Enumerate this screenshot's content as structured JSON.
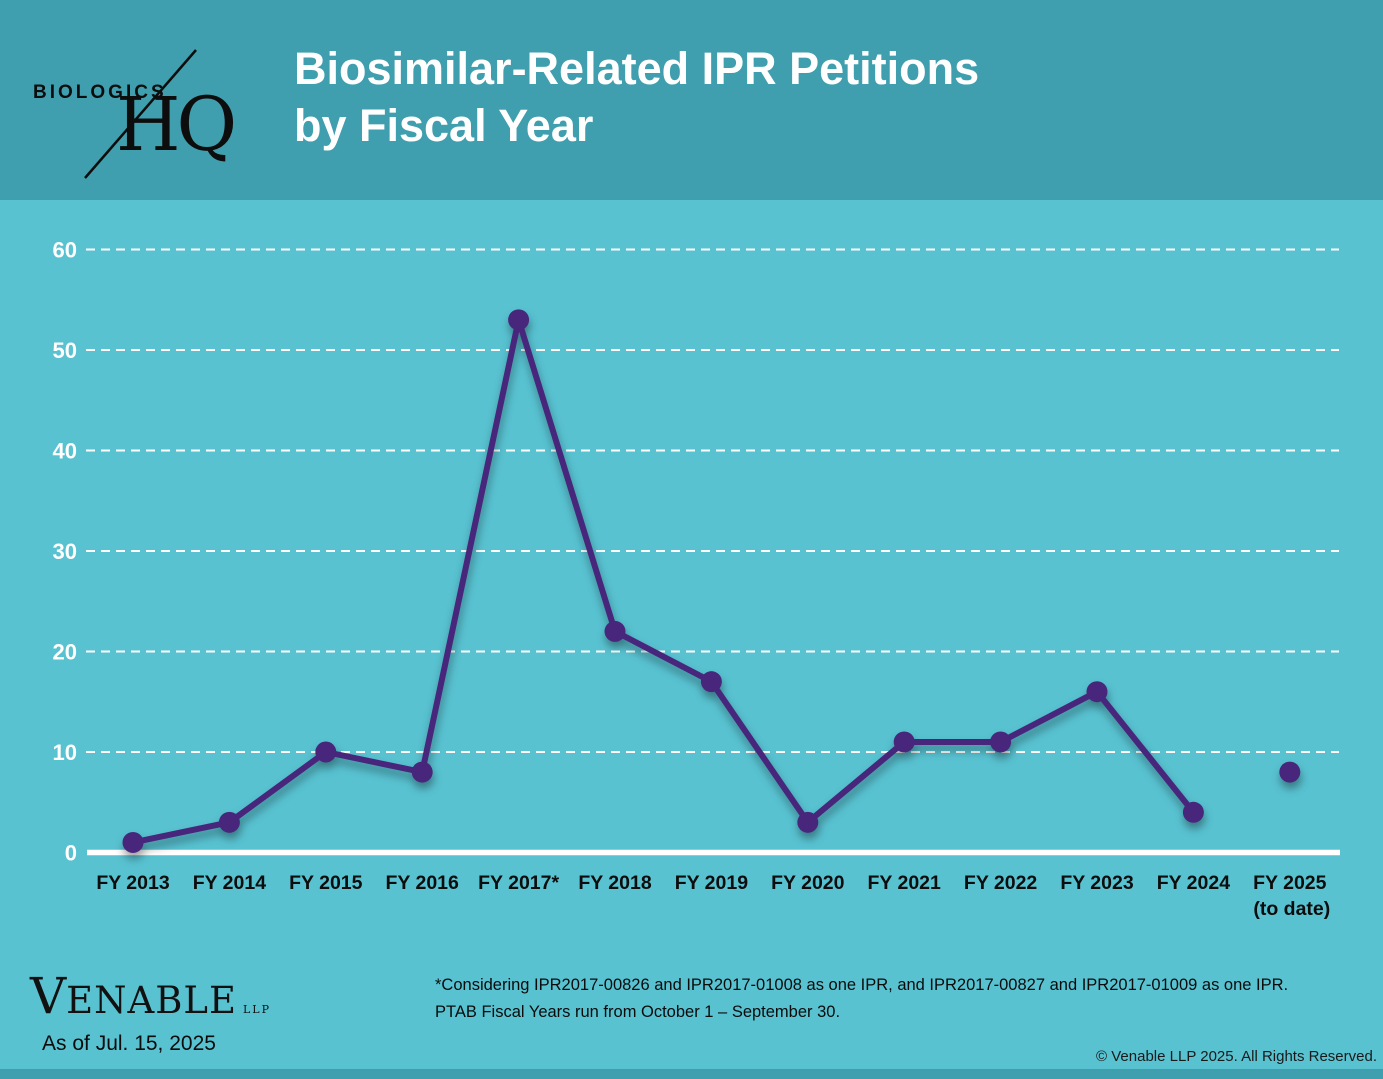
{
  "header": {
    "logo_top": "BIOLOGICS",
    "logo_bottom": "HQ",
    "title_line1": "Biosimilar-Related IPR Petitions",
    "title_line2": "by Fiscal Year"
  },
  "chart_data": {
    "type": "line",
    "title": "Biosimilar-Related IPR Petitions by Fiscal Year",
    "categories": [
      "FY 2013",
      "FY 2014",
      "FY 2015",
      "FY 2016",
      "FY 2017*",
      "FY 2018",
      "FY 2019",
      "FY 2020",
      "FY 2021",
      "FY 2022",
      "FY 2023",
      "FY 2024",
      "FY 2025"
    ],
    "last_category_note": "(to date)",
    "values": [
      1,
      3,
      10,
      8,
      53,
      22,
      17,
      3,
      11,
      11,
      16,
      4,
      8
    ],
    "line_connects_through_index": 11,
    "isolated_point_index": 12,
    "xlabel": "",
    "ylabel": "",
    "ylim": [
      0,
      60
    ],
    "yticks": [
      0,
      10,
      20,
      30,
      40,
      50,
      60
    ],
    "grid": "horizontal-dashed",
    "legend": "none",
    "colors": {
      "line": "#46287c",
      "marker": "#46287c",
      "gridline": "#ffffff",
      "axis_line": "#ffffff",
      "ytick_label": "#ffffff",
      "xtick_label": "#0d0d0d"
    }
  },
  "footer": {
    "brand_initial": "V",
    "brand_rest": "ENABLE",
    "brand_suffix": "LLP",
    "as_of": "As of Jul. 15, 2025",
    "footnote_line1": "*Considering IPR2017-00826 and IPR2017-01008 as one IPR, and IPR2017-00827 and IPR2017-01009 as one IPR.",
    "footnote_line2": "PTAB Fiscal Years run from October 1 – September 30.",
    "copyright": "© Venable LLP 2025. All Rights Reserved."
  },
  "colors": {
    "header_bg": "#3f9fae",
    "chart_bg": "#58c2d1"
  }
}
